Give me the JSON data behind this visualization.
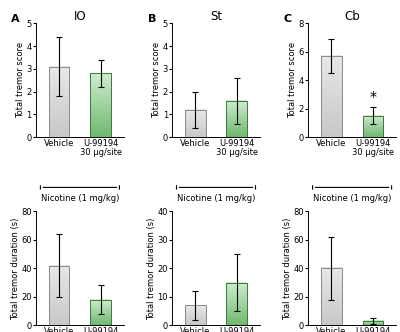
{
  "panels": [
    {
      "label": "A",
      "title": "IO",
      "row": 0,
      "col": 0,
      "ylabel": "Total tremor score",
      "ylim": [
        0,
        5
      ],
      "yticks": [
        0,
        1,
        2,
        3,
        4,
        5
      ],
      "bar_values": [
        3.1,
        2.8
      ],
      "bar_errors": [
        1.3,
        0.6
      ],
      "significant": false
    },
    {
      "label": "B",
      "title": "St",
      "row": 0,
      "col": 1,
      "ylabel": "Total tremor score",
      "ylim": [
        0,
        5
      ],
      "yticks": [
        0,
        1,
        2,
        3,
        4,
        5
      ],
      "bar_values": [
        1.2,
        1.6
      ],
      "bar_errors": [
        0.8,
        1.0
      ],
      "significant": false
    },
    {
      "label": "C",
      "title": "Cb",
      "row": 0,
      "col": 2,
      "ylabel": "Total tremor score",
      "ylim": [
        0,
        8
      ],
      "yticks": [
        0,
        2,
        4,
        6,
        8
      ],
      "bar_values": [
        5.7,
        1.5
      ],
      "bar_errors": [
        1.2,
        0.6
      ],
      "significant": true
    },
    {
      "label": "",
      "title": "",
      "row": 1,
      "col": 0,
      "ylabel": "Total tremor duration (s)",
      "ylim": [
        0,
        80
      ],
      "yticks": [
        0,
        20,
        40,
        60,
        80
      ],
      "bar_values": [
        42,
        18
      ],
      "bar_errors": [
        22,
        10
      ],
      "significant": false
    },
    {
      "label": "",
      "title": "",
      "row": 1,
      "col": 1,
      "ylabel": "Total tremor duration (s)",
      "ylim": [
        0,
        40
      ],
      "yticks": [
        0,
        10,
        20,
        30,
        40
      ],
      "bar_values": [
        7,
        15
      ],
      "bar_errors": [
        5,
        10
      ],
      "significant": false
    },
    {
      "label": "",
      "title": "",
      "row": 1,
      "col": 2,
      "ylabel": "Total tremor duration (s)",
      "ylim": [
        0,
        80
      ],
      "yticks": [
        0,
        20,
        40,
        60,
        80
      ],
      "bar_values": [
        40,
        3
      ],
      "bar_errors": [
        22,
        2
      ],
      "significant": false
    }
  ],
  "bar_colors_gray": [
    "#c8c8c8",
    "#e8e8e8"
  ],
  "bar_colors_green": [
    "#70b870",
    "#d0ecd0"
  ],
  "bar_edge_gray": "#888888",
  "bar_edge_green": "#3a7a3a",
  "xtick_labels": [
    "Vehicle",
    "U-99194\n30 μg/site"
  ],
  "xlabel": "Nicotine (1 mg/kg)",
  "bar_width": 0.5,
  "background_color": "#ffffff",
  "capsize": 2,
  "elinewidth": 0.8,
  "title_fontsize": 8.5,
  "panel_label_fontsize": 8,
  "xlabel_fontsize": 6.0,
  "ylabel_fontsize": 6.0,
  "tick_fontsize": 6.0,
  "sig_fontsize": 10
}
